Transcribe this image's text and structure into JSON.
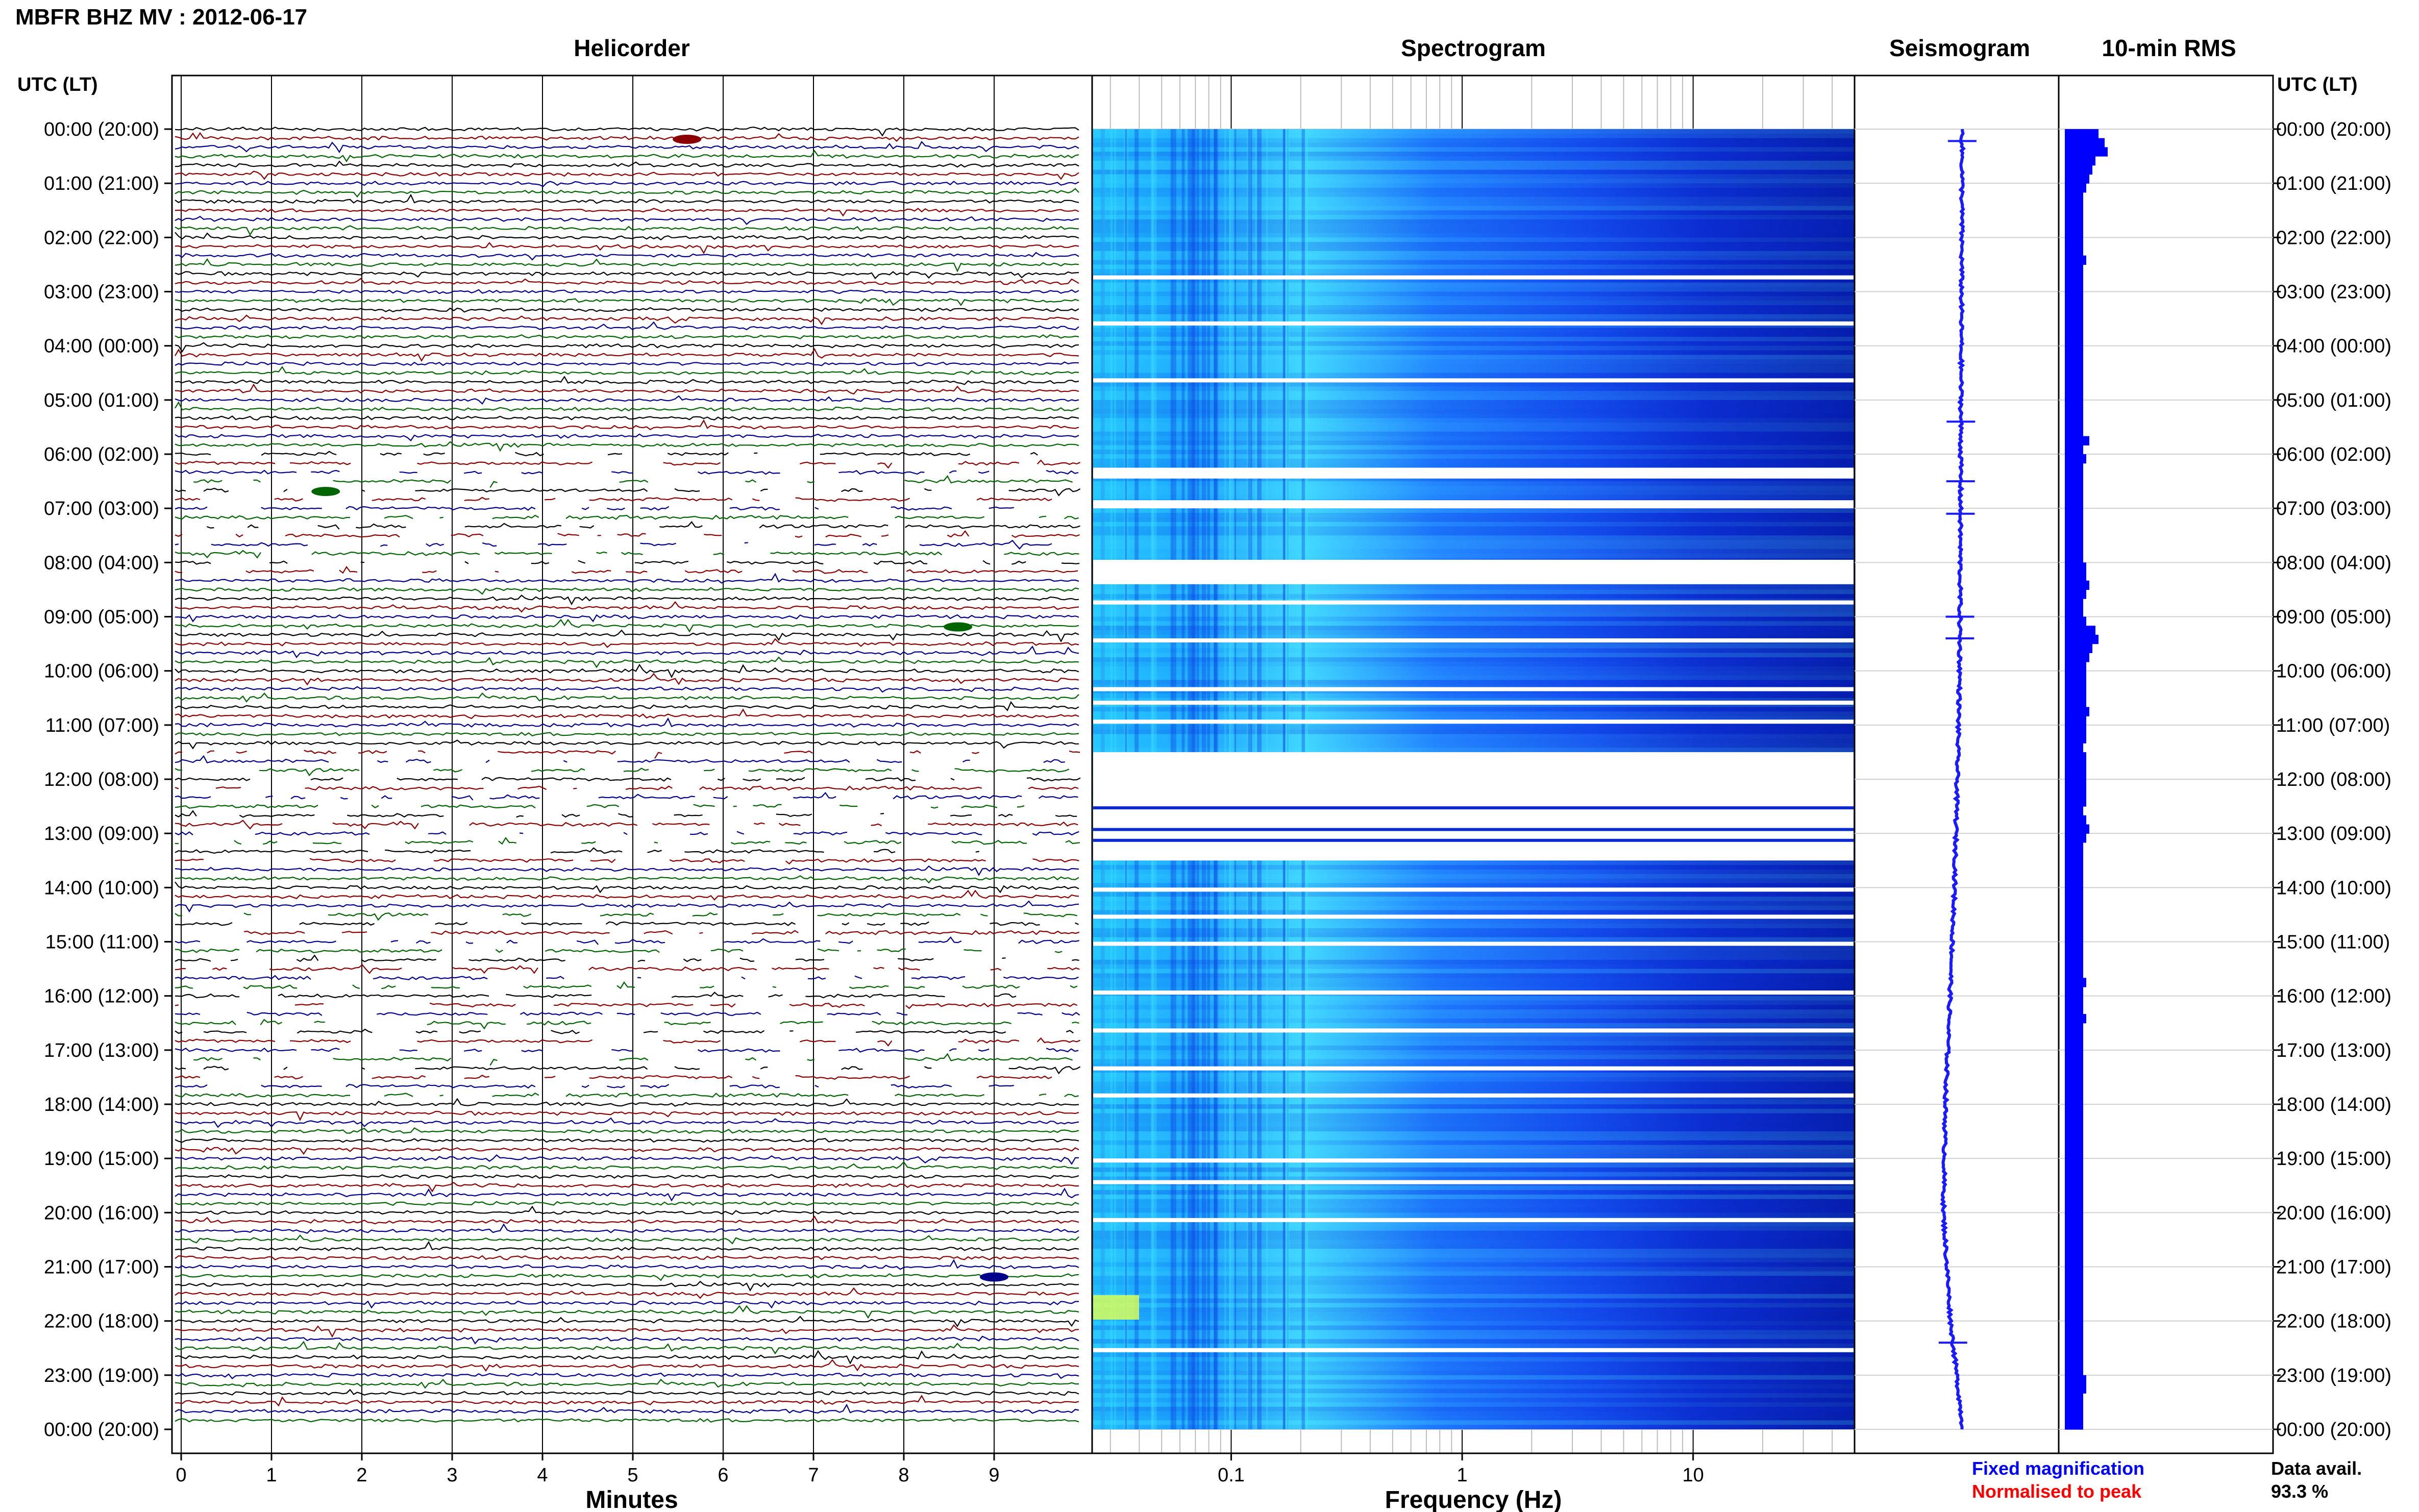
{
  "header": {
    "title": "MBFR BHZ MV : 2012-06-17",
    "utc_label_left": "UTC (LT)",
    "utc_label_right": "UTC (LT)"
  },
  "panels": {
    "helicorder": "Helicorder",
    "spectrogram": "Spectrogram",
    "seismogram": "Seismogram",
    "rms": "10-min RMS"
  },
  "axes": {
    "helicorder_xlabel": "Minutes",
    "spectrogram_xlabel": "Frequency (Hz)",
    "minute_ticks": [
      "0",
      "1",
      "2",
      "3",
      "4",
      "5",
      "6",
      "7",
      "8",
      "9"
    ],
    "freq_ticks": [
      "0.1",
      "1",
      "10"
    ]
  },
  "hour_labels": [
    "00:00 (20:00)",
    "01:00 (21:00)",
    "02:00 (22:00)",
    "03:00 (23:00)",
    "04:00 (00:00)",
    "05:00 (01:00)",
    "06:00 (02:00)",
    "07:00 (03:00)",
    "08:00 (04:00)",
    "09:00 (05:00)",
    "10:00 (06:00)",
    "11:00 (07:00)",
    "12:00 (08:00)",
    "13:00 (09:00)",
    "14:00 (10:00)",
    "15:00 (11:00)",
    "16:00 (12:00)",
    "17:00 (13:00)",
    "18:00 (14:00)",
    "19:00 (15:00)",
    "20:00 (16:00)",
    "21:00 (17:00)",
    "22:00 (18:00)",
    "23:00 (19:00)",
    "00:00 (20:00)"
  ],
  "legend": {
    "fixed": "Fixed magnification",
    "normalised": "Normalised to peak",
    "avail_label": "Data avail.",
    "avail_value": "93.3 %"
  },
  "colors": {
    "trace_black": "#000000",
    "trace_red": "#8b0000",
    "trace_blue": "#00008b",
    "trace_green": "#006400",
    "seismogram": "#1a1aff",
    "rms": "#0000ff",
    "legend_fixed": "#0000ff",
    "legend_normalised": "#ff0000"
  },
  "chart_data": {
    "type": "helicorder",
    "trace_color_cycle": [
      "black",
      "red",
      "blue",
      "green"
    ],
    "spectrogram_freq_range_hz": [
      0.025,
      50
    ],
    "spectrogram_freq_scale": "log",
    "spectrogram_gap_bands_utc_hours": [
      [
        6.25,
        6.45
      ],
      [
        6.85,
        7.0
      ],
      [
        7.95,
        8.4
      ],
      [
        11.5,
        13.5
      ]
    ],
    "rms_10min": [
      0.55,
      0.65,
      0.7,
      0.5,
      0.45,
      0.4,
      0.35,
      0.3,
      0.3,
      0.3,
      0.3,
      0.3,
      0.3,
      0.3,
      0.35,
      0.3,
      0.3,
      0.3,
      0.3,
      0.3,
      0.3,
      0.3,
      0.3,
      0.3,
      0.3,
      0.3,
      0.3,
      0.3,
      0.3,
      0.3,
      0.3,
      0.3,
      0.3,
      0.3,
      0.4,
      0.3,
      0.35,
      0.3,
      0.3,
      0.3,
      0.3,
      0.3,
      0.3,
      0.3,
      0.3,
      0.3,
      0.3,
      0.3,
      0.35,
      0.35,
      0.4,
      0.35,
      0.3,
      0.3,
      0.35,
      0.5,
      0.55,
      0.45,
      0.4,
      0.35,
      0.35,
      0.35,
      0.35,
      0.35,
      0.4,
      0.35,
      0.35,
      0.35,
      0.3,
      0.35,
      0.35,
      0.35,
      0.35,
      0.35,
      0.35,
      0.3,
      0.35,
      0.4,
      0.35,
      0.3,
      0.3,
      0.3,
      0.3,
      0.3,
      0.3,
      0.3,
      0.3,
      0.3,
      0.3,
      0.3,
      0.3,
      0.3,
      0.3,
      0.3,
      0.35,
      0.3,
      0.3,
      0.3,
      0.35,
      0.3,
      0.3,
      0.3,
      0.3,
      0.3,
      0.3,
      0.3,
      0.3,
      0.3,
      0.3,
      0.3,
      0.3,
      0.3,
      0.3,
      0.3,
      0.3,
      0.3,
      0.3,
      0.3,
      0.3,
      0.3,
      0.3,
      0.3,
      0.3,
      0.3,
      0.3,
      0.3,
      0.3,
      0.3,
      0.3,
      0.3,
      0.3,
      0.3,
      0.3,
      0.3,
      0.3,
      0.3,
      0.3,
      0.3,
      0.35,
      0.35,
      0.3,
      0.3,
      0.3,
      0.3
    ]
  }
}
